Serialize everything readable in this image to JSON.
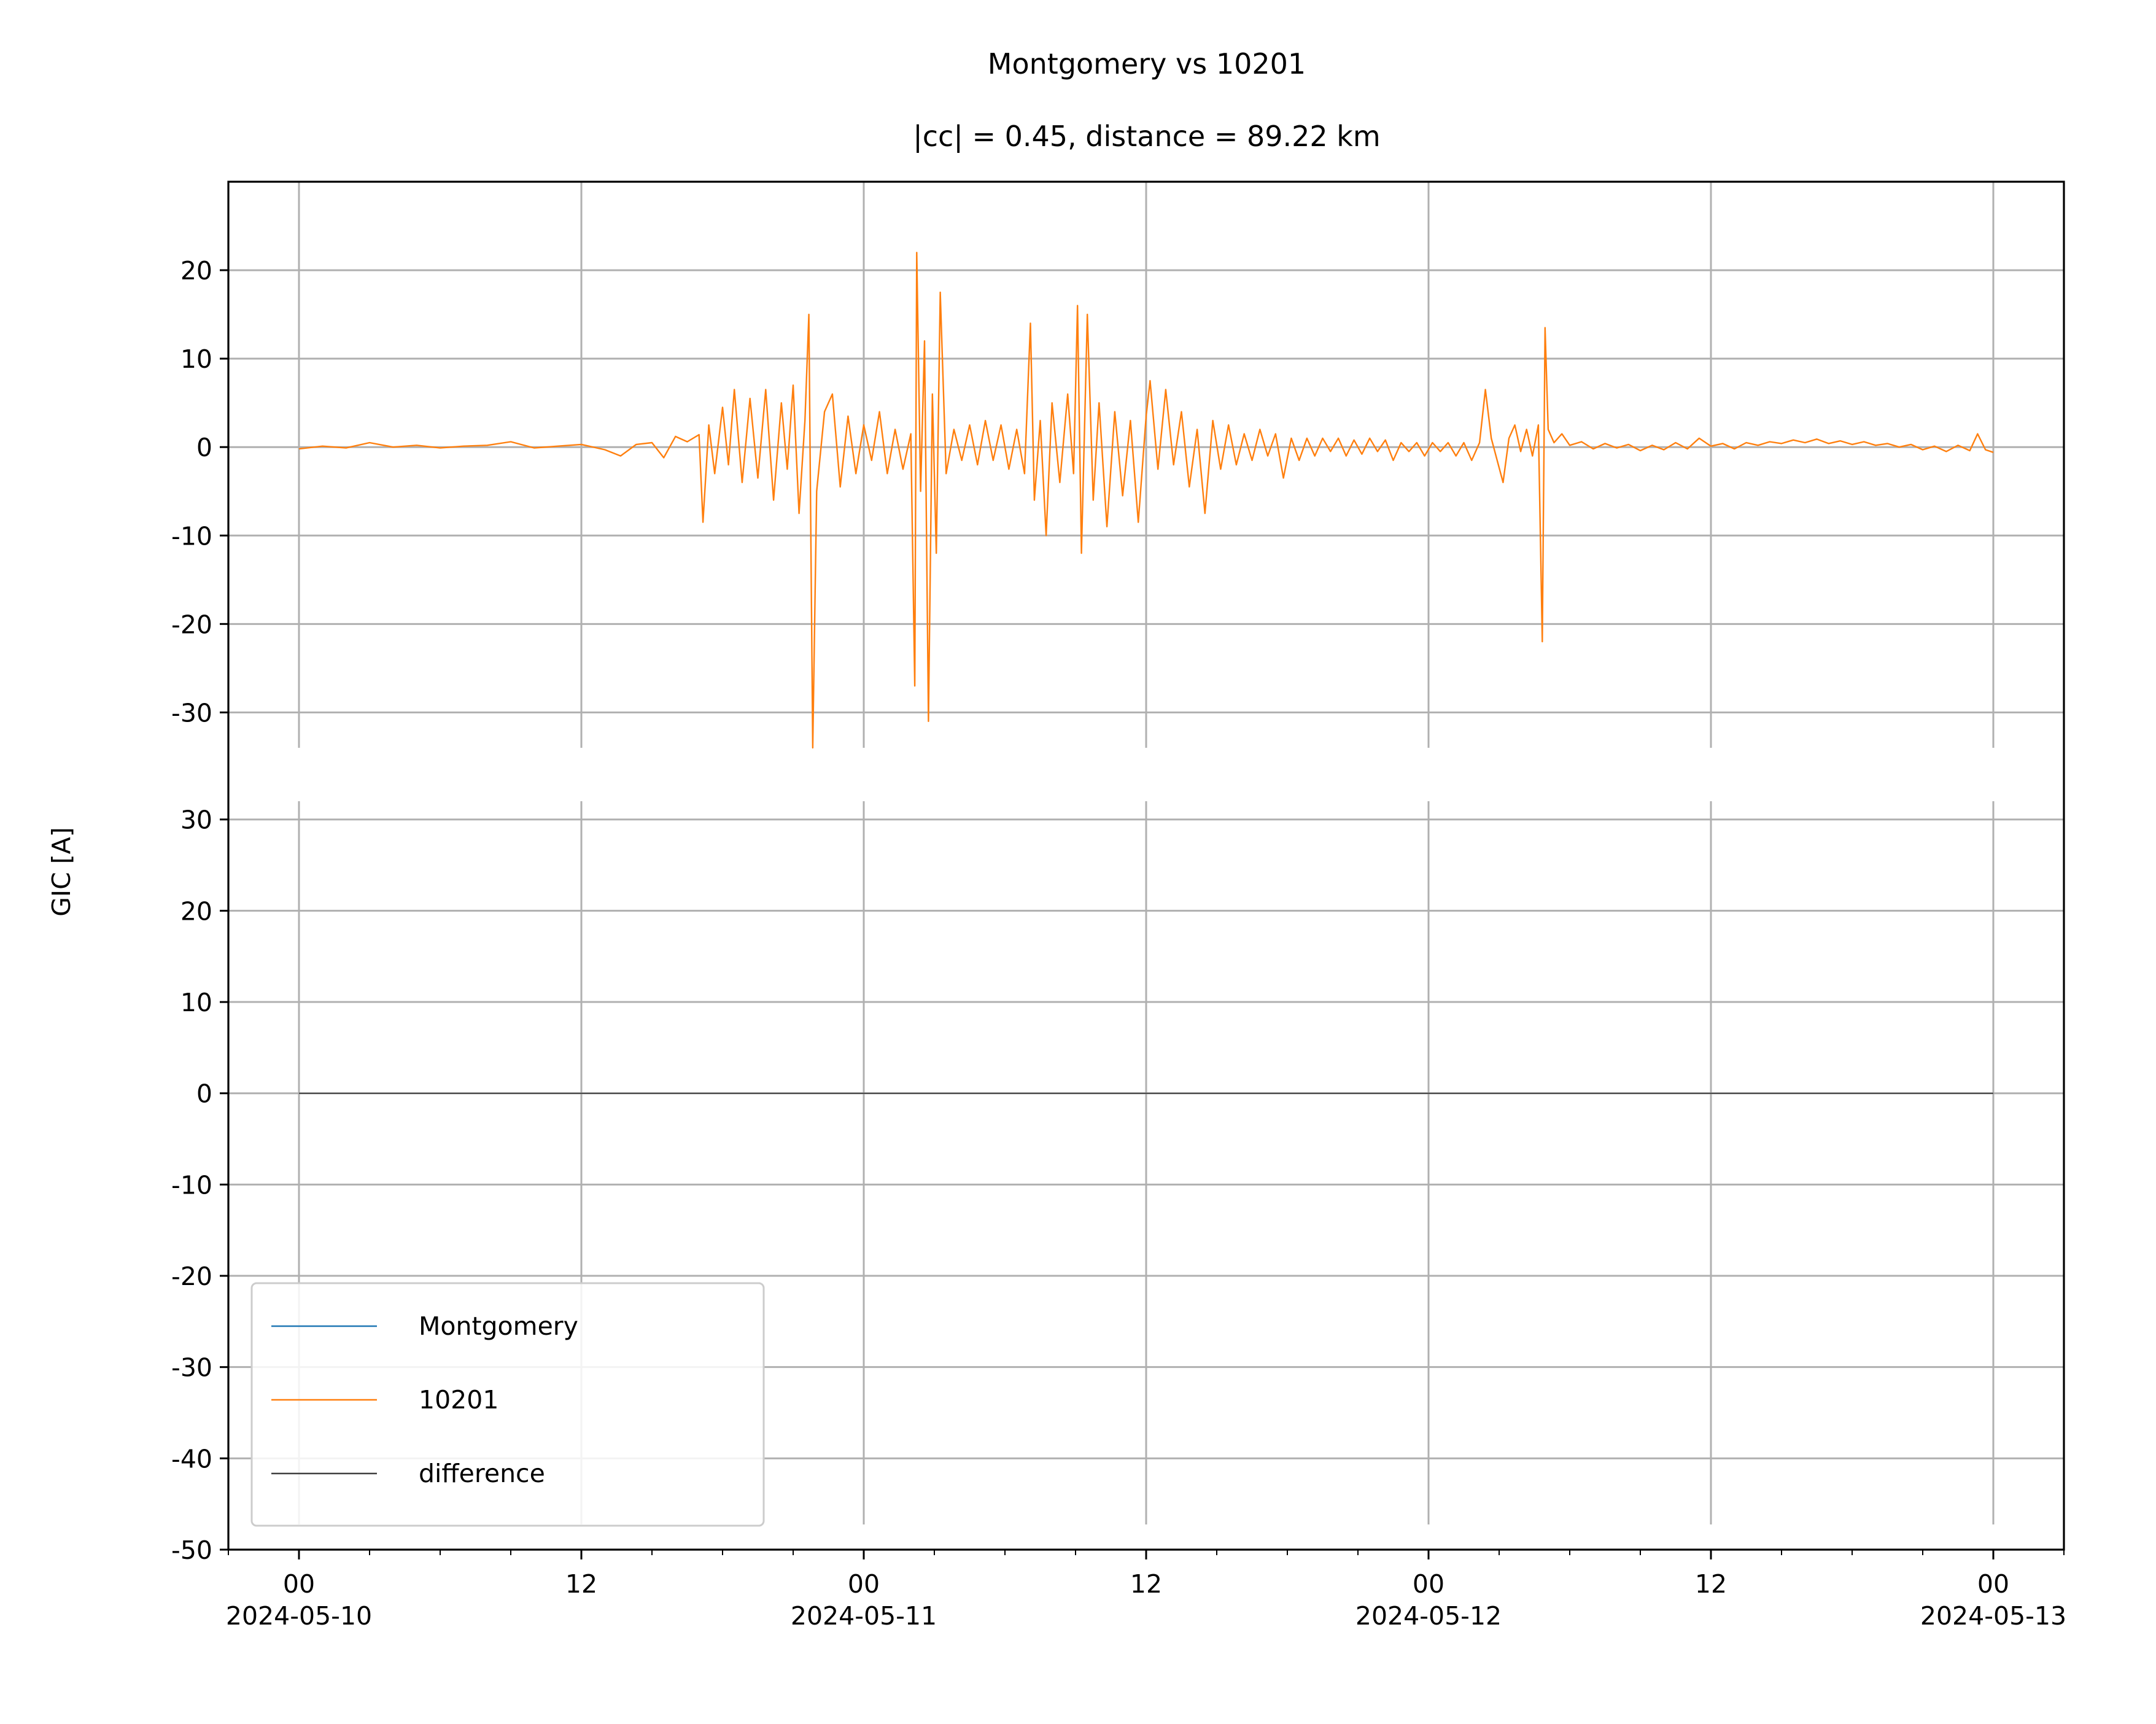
{
  "chart_data": {
    "type": "line",
    "title": "Montgomery vs 10201",
    "subtitle": "|cc| = 0.45, distance = 89.22 km",
    "ylabel": "GIC [A]",
    "xlabel": "",
    "xlim": [
      "2024-05-09T21:00",
      "2024-05-13T03:00"
    ],
    "xticks": [
      {
        "t": "2024-05-10T00:00",
        "line1": "00",
        "line2": "2024-05-10"
      },
      {
        "t": "2024-05-10T12:00",
        "line1": "12",
        "line2": ""
      },
      {
        "t": "2024-05-11T00:00",
        "line1": "00",
        "line2": "2024-05-11"
      },
      {
        "t": "2024-05-11T12:00",
        "line1": "12",
        "line2": ""
      },
      {
        "t": "2024-05-12T00:00",
        "line1": "00",
        "line2": "2024-05-12"
      },
      {
        "t": "2024-05-12T12:00",
        "line1": "12",
        "line2": ""
      },
      {
        "t": "2024-05-13T00:00",
        "line1": "00",
        "line2": "2024-05-13"
      }
    ],
    "grid": true,
    "legend_position": "lower left",
    "panels": [
      {
        "name": "top",
        "ylim": [
          -34,
          30
        ],
        "yticks": [
          20,
          10,
          0,
          -10,
          -20,
          -30
        ],
        "series": [
          {
            "name": "10201",
            "color": "#ff7f0e",
            "points": [
              [
                "2024-05-10T00:00",
                -0.2
              ],
              [
                "2024-05-10T01:00",
                0.1
              ],
              [
                "2024-05-10T02:00",
                -0.1
              ],
              [
                "2024-05-10T03:00",
                0.5
              ],
              [
                "2024-05-10T04:00",
                0.0
              ],
              [
                "2024-05-10T05:00",
                0.2
              ],
              [
                "2024-05-10T06:00",
                -0.1
              ],
              [
                "2024-05-10T07:00",
                0.1
              ],
              [
                "2024-05-10T08:00",
                0.2
              ],
              [
                "2024-05-10T09:00",
                0.6
              ],
              [
                "2024-05-10T10:00",
                -0.1
              ],
              [
                "2024-05-10T11:00",
                0.1
              ],
              [
                "2024-05-10T12:00",
                0.3
              ],
              [
                "2024-05-10T13:00",
                -0.3
              ],
              [
                "2024-05-10T13:40",
                -1.0
              ],
              [
                "2024-05-10T14:20",
                0.3
              ],
              [
                "2024-05-10T15:00",
                0.5
              ],
              [
                "2024-05-10T15:30",
                -1.2
              ],
              [
                "2024-05-10T16:00",
                1.2
              ],
              [
                "2024-05-10T16:30",
                0.6
              ],
              [
                "2024-05-10T17:00",
                1.4
              ],
              [
                "2024-05-10T17:10",
                -8.5
              ],
              [
                "2024-05-10T17:25",
                2.5
              ],
              [
                "2024-05-10T17:40",
                -3.0
              ],
              [
                "2024-05-10T18:00",
                4.5
              ],
              [
                "2024-05-10T18:15",
                -2.0
              ],
              [
                "2024-05-10T18:30",
                6.5
              ],
              [
                "2024-05-10T18:50",
                -4.0
              ],
              [
                "2024-05-10T19:10",
                5.5
              ],
              [
                "2024-05-10T19:30",
                -3.5
              ],
              [
                "2024-05-10T19:50",
                6.5
              ],
              [
                "2024-05-10T20:10",
                -6.0
              ],
              [
                "2024-05-10T20:30",
                5.0
              ],
              [
                "2024-05-10T20:45",
                -2.5
              ],
              [
                "2024-05-10T21:00",
                7.0
              ],
              [
                "2024-05-10T21:15",
                -7.5
              ],
              [
                "2024-05-10T21:30",
                3.0
              ],
              [
                "2024-05-10T21:40",
                15.0
              ],
              [
                "2024-05-10T21:50",
                -34.0
              ],
              [
                "2024-05-10T22:00",
                -5.0
              ],
              [
                "2024-05-10T22:20",
                4.0
              ],
              [
                "2024-05-10T22:40",
                6.0
              ],
              [
                "2024-05-10T23:00",
                -4.5
              ],
              [
                "2024-05-10T23:20",
                3.5
              ],
              [
                "2024-05-10T23:40",
                -3.0
              ],
              [
                "2024-05-11T00:00",
                2.5
              ],
              [
                "2024-05-11T00:20",
                -1.5
              ],
              [
                "2024-05-11T00:40",
                4.0
              ],
              [
                "2024-05-11T01:00",
                -3.0
              ],
              [
                "2024-05-11T01:20",
                2.0
              ],
              [
                "2024-05-11T01:40",
                -2.5
              ],
              [
                "2024-05-11T02:00",
                1.5
              ],
              [
                "2024-05-11T02:10",
                -27.0
              ],
              [
                "2024-05-11T02:15",
                22.0
              ],
              [
                "2024-05-11T02:25",
                -5.0
              ],
              [
                "2024-05-11T02:35",
                12.0
              ],
              [
                "2024-05-11T02:45",
                -31.0
              ],
              [
                "2024-05-11T02:55",
                6.0
              ],
              [
                "2024-05-11T03:05",
                -12.0
              ],
              [
                "2024-05-11T03:15",
                17.5
              ],
              [
                "2024-05-11T03:30",
                -3.0
              ],
              [
                "2024-05-11T03:50",
                2.0
              ],
              [
                "2024-05-11T04:10",
                -1.5
              ],
              [
                "2024-05-11T04:30",
                2.5
              ],
              [
                "2024-05-11T04:50",
                -2.0
              ],
              [
                "2024-05-11T05:10",
                3.0
              ],
              [
                "2024-05-11T05:30",
                -1.5
              ],
              [
                "2024-05-11T05:50",
                2.5
              ],
              [
                "2024-05-11T06:10",
                -2.5
              ],
              [
                "2024-05-11T06:30",
                2.0
              ],
              [
                "2024-05-11T06:50",
                -3.0
              ],
              [
                "2024-05-11T07:05",
                14.0
              ],
              [
                "2024-05-11T07:15",
                -6.0
              ],
              [
                "2024-05-11T07:30",
                3.0
              ],
              [
                "2024-05-11T07:45",
                -10.0
              ],
              [
                "2024-05-11T08:00",
                5.0
              ],
              [
                "2024-05-11T08:20",
                -4.0
              ],
              [
                "2024-05-11T08:40",
                6.0
              ],
              [
                "2024-05-11T08:55",
                -3.0
              ],
              [
                "2024-05-11T09:05",
                16.0
              ],
              [
                "2024-05-11T09:15",
                -12.0
              ],
              [
                "2024-05-11T09:30",
                15.0
              ],
              [
                "2024-05-11T09:45",
                -6.0
              ],
              [
                "2024-05-11T10:00",
                5.0
              ],
              [
                "2024-05-11T10:20",
                -9.0
              ],
              [
                "2024-05-11T10:40",
                4.0
              ],
              [
                "2024-05-11T11:00",
                -5.5
              ],
              [
                "2024-05-11T11:20",
                3.0
              ],
              [
                "2024-05-11T11:40",
                -8.5
              ],
              [
                "2024-05-11T12:00",
                3.5
              ],
              [
                "2024-05-11T12:10",
                7.5
              ],
              [
                "2024-05-11T12:30",
                -2.5
              ],
              [
                "2024-05-11T12:50",
                6.5
              ],
              [
                "2024-05-11T13:10",
                -2.0
              ],
              [
                "2024-05-11T13:30",
                4.0
              ],
              [
                "2024-05-11T13:50",
                -4.5
              ],
              [
                "2024-05-11T14:10",
                2.0
              ],
              [
                "2024-05-11T14:30",
                -7.5
              ],
              [
                "2024-05-11T14:50",
                3.0
              ],
              [
                "2024-05-11T15:10",
                -2.5
              ],
              [
                "2024-05-11T15:30",
                2.5
              ],
              [
                "2024-05-11T15:50",
                -2.0
              ],
              [
                "2024-05-11T16:10",
                1.5
              ],
              [
                "2024-05-11T16:30",
                -1.5
              ],
              [
                "2024-05-11T16:50",
                2.0
              ],
              [
                "2024-05-11T17:10",
                -1.0
              ],
              [
                "2024-05-11T17:30",
                1.5
              ],
              [
                "2024-05-11T17:50",
                -3.5
              ],
              [
                "2024-05-11T18:10",
                1.0
              ],
              [
                "2024-05-11T18:30",
                -1.5
              ],
              [
                "2024-05-11T18:50",
                1.0
              ],
              [
                "2024-05-11T19:10",
                -1.0
              ],
              [
                "2024-05-11T19:30",
                1.0
              ],
              [
                "2024-05-11T19:50",
                -0.5
              ],
              [
                "2024-05-11T20:10",
                1.0
              ],
              [
                "2024-05-11T20:30",
                -1.0
              ],
              [
                "2024-05-11T20:50",
                0.8
              ],
              [
                "2024-05-11T21:10",
                -0.8
              ],
              [
                "2024-05-11T21:30",
                1.0
              ],
              [
                "2024-05-11T21:50",
                -0.5
              ],
              [
                "2024-05-11T22:10",
                0.8
              ],
              [
                "2024-05-11T22:30",
                -1.5
              ],
              [
                "2024-05-11T22:50",
                0.5
              ],
              [
                "2024-05-11T23:10",
                -0.5
              ],
              [
                "2024-05-11T23:30",
                0.5
              ],
              [
                "2024-05-11T23:50",
                -1.0
              ],
              [
                "2024-05-12T00:10",
                0.5
              ],
              [
                "2024-05-12T00:30",
                -0.5
              ],
              [
                "2024-05-12T00:50",
                0.5
              ],
              [
                "2024-05-12T01:10",
                -1.0
              ],
              [
                "2024-05-12T01:30",
                0.5
              ],
              [
                "2024-05-12T01:50",
                -1.5
              ],
              [
                "2024-05-12T02:10",
                0.5
              ],
              [
                "2024-05-12T02:25",
                6.5
              ],
              [
                "2024-05-12T02:40",
                1.0
              ],
              [
                "2024-05-12T02:55",
                -1.5
              ],
              [
                "2024-05-12T03:10",
                -4.0
              ],
              [
                "2024-05-12T03:25",
                1.0
              ],
              [
                "2024-05-12T03:40",
                2.5
              ],
              [
                "2024-05-12T03:55",
                -0.5
              ],
              [
                "2024-05-12T04:10",
                2.0
              ],
              [
                "2024-05-12T04:25",
                -1.0
              ],
              [
                "2024-05-12T04:40",
                2.5
              ],
              [
                "2024-05-12T04:50",
                -22.0
              ],
              [
                "2024-05-12T04:57",
                13.5
              ],
              [
                "2024-05-12T05:05",
                2.0
              ],
              [
                "2024-05-12T05:20",
                0.5
              ],
              [
                "2024-05-12T05:40",
                1.5
              ],
              [
                "2024-05-12T06:00",
                0.2
              ],
              [
                "2024-05-12T06:30",
                0.6
              ],
              [
                "2024-05-12T07:00",
                -0.2
              ],
              [
                "2024-05-12T07:30",
                0.4
              ],
              [
                "2024-05-12T08:00",
                -0.1
              ],
              [
                "2024-05-12T08:30",
                0.3
              ],
              [
                "2024-05-12T09:00",
                -0.4
              ],
              [
                "2024-05-12T09:30",
                0.2
              ],
              [
                "2024-05-12T10:00",
                -0.3
              ],
              [
                "2024-05-12T10:30",
                0.5
              ],
              [
                "2024-05-12T11:00",
                -0.2
              ],
              [
                "2024-05-12T11:30",
                1.0
              ],
              [
                "2024-05-12T12:00",
                0.1
              ],
              [
                "2024-05-12T12:30",
                0.4
              ],
              [
                "2024-05-12T13:00",
                -0.2
              ],
              [
                "2024-05-12T13:30",
                0.5
              ],
              [
                "2024-05-12T14:00",
                0.2
              ],
              [
                "2024-05-12T14:30",
                0.6
              ],
              [
                "2024-05-12T15:00",
                0.4
              ],
              [
                "2024-05-12T15:30",
                0.8
              ],
              [
                "2024-05-12T16:00",
                0.5
              ],
              [
                "2024-05-12T16:30",
                0.9
              ],
              [
                "2024-05-12T17:00",
                0.4
              ],
              [
                "2024-05-12T17:30",
                0.7
              ],
              [
                "2024-05-12T18:00",
                0.3
              ],
              [
                "2024-05-12T18:30",
                0.6
              ],
              [
                "2024-05-12T19:00",
                0.2
              ],
              [
                "2024-05-12T19:30",
                0.4
              ],
              [
                "2024-05-12T20:00",
                0.0
              ],
              [
                "2024-05-12T20:30",
                0.3
              ],
              [
                "2024-05-12T21:00",
                -0.3
              ],
              [
                "2024-05-12T21:30",
                0.1
              ],
              [
                "2024-05-12T22:00",
                -0.5
              ],
              [
                "2024-05-12T22:30",
                0.2
              ],
              [
                "2024-05-12T23:00",
                -0.4
              ],
              [
                "2024-05-12T23:20",
                1.5
              ],
              [
                "2024-05-12T23:40",
                -0.3
              ],
              [
                "2024-05-13T00:00",
                -0.6
              ]
            ]
          }
        ]
      },
      {
        "name": "bottom",
        "ylim": [
          -50,
          32
        ],
        "yticks": [
          30,
          20,
          10,
          0,
          -10,
          -20,
          -30,
          -40,
          -50
        ],
        "series": [
          {
            "name": "difference",
            "color": "#404040",
            "points": [
              [
                "2024-05-10T00:00",
                0
              ],
              [
                "2024-05-13T00:00",
                0
              ]
            ]
          }
        ]
      }
    ],
    "legend": [
      {
        "label": "Montgomery",
        "color": "#1f77b4"
      },
      {
        "label": "10201",
        "color": "#ff7f0e"
      },
      {
        "label": "difference",
        "color": "#404040"
      }
    ]
  }
}
